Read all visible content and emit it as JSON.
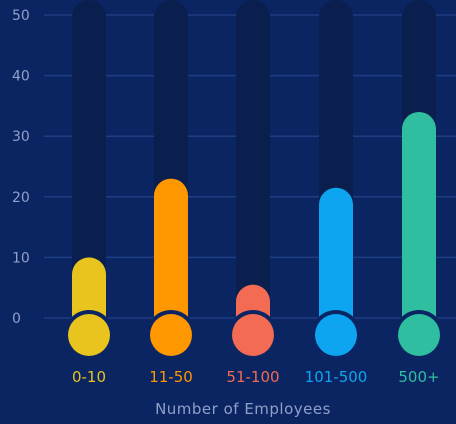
{
  "chart_data": {
    "type": "bar",
    "title": "",
    "xlabel": "Number of Employees",
    "ylabel": "",
    "categories": [
      "0-10",
      "11-50",
      "51-100",
      "101-500",
      "500+"
    ],
    "values": [
      10,
      23,
      5.5,
      21.5,
      34
    ],
    "ylim": [
      0,
      50
    ],
    "yticks": [
      0,
      10,
      20,
      30,
      40,
      50
    ],
    "grid": true,
    "legend": "none",
    "colors": [
      "#e9c41f",
      "#ff9700",
      "#f26b52",
      "#0ea5f0",
      "#2fbfa0"
    ],
    "background": "#0b2563",
    "track_color": "#0a1f4e",
    "grid_color": "#1f3d82",
    "tick_label_color": "#8fa0c8",
    "xlabel_color": "#8fa0c8"
  }
}
